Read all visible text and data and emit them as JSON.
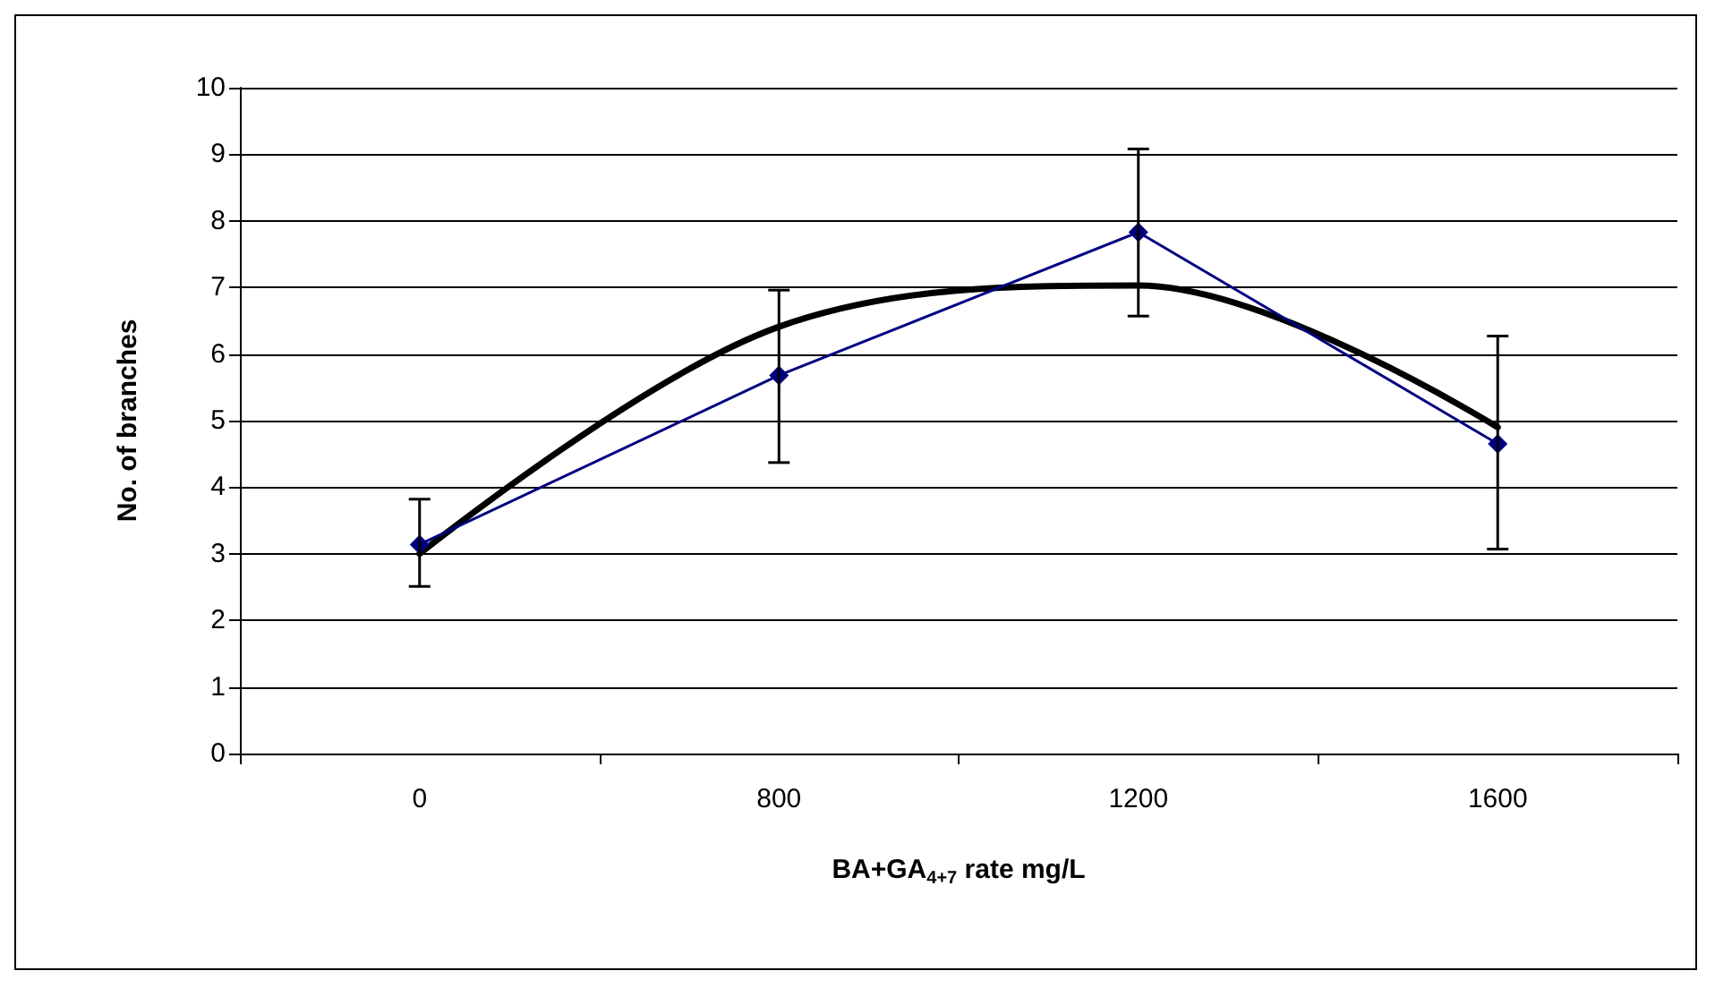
{
  "chart_data": {
    "type": "line",
    "xlabel": "BA+GA$_{4+7}$ rate mg/L",
    "ylabel": "No. of branches",
    "categories": [
      "0",
      "800",
      "1200",
      "1600"
    ],
    "series": [
      {
        "color": "#000080",
        "values": [
          3.14,
          5.68,
          7.83,
          4.65
        ],
        "errors": [
          [
            2.51,
            3.82
          ],
          [
            4.37,
            6.96
          ],
          [
            6.57,
            9.08
          ],
          [
            3.07,
            6.27
          ]
        ],
        "marker": "diamond",
        "line_style": "solid"
      },
      {
        "type": "line",
        "color": "#000000",
        "values": [
          3.0,
          6.41,
          7.03,
          4.9
        ],
        "marker": "none",
        "line_style": "solid"
      }
    ],
    "ylim": [
      0,
      10
    ],
    "yticks": [
      0,
      1,
      2,
      3,
      4,
      5,
      6,
      7,
      8,
      9,
      10
    ],
    "grid": "y"
  }
}
